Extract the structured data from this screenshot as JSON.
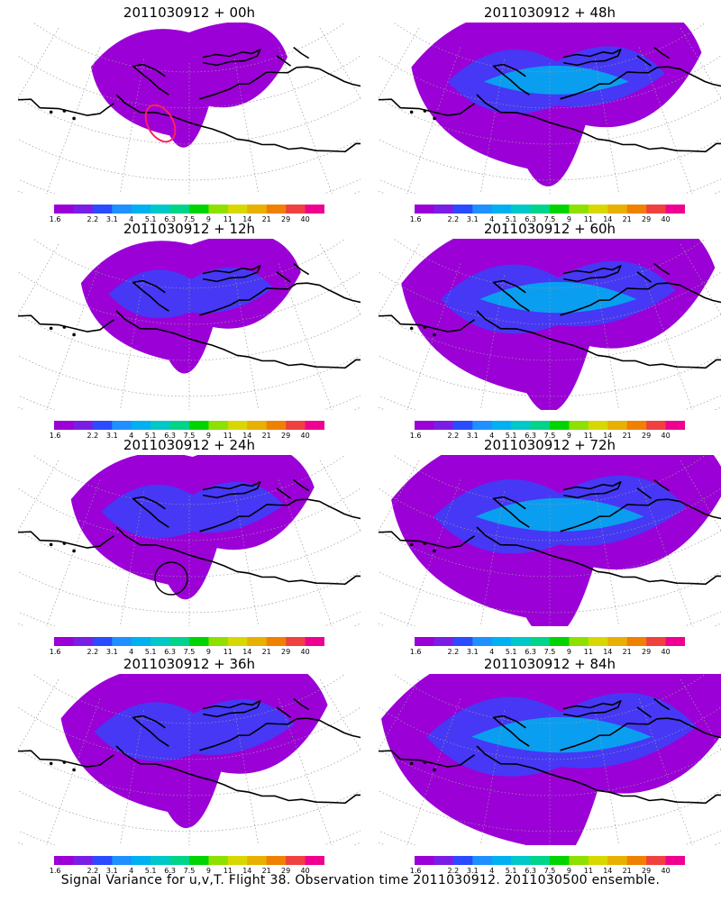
{
  "panels": [
    {
      "title": "2011030912 + 00h",
      "lead_hours": 0,
      "marker": "red-oval"
    },
    {
      "title": "2011030912 + 48h",
      "lead_hours": 48,
      "marker": ""
    },
    {
      "title": "2011030912 + 12h",
      "lead_hours": 12,
      "marker": ""
    },
    {
      "title": "2011030912 + 60h",
      "lead_hours": 60,
      "marker": ""
    },
    {
      "title": "2011030912 + 24h",
      "lead_hours": 24,
      "marker": "black-circle"
    },
    {
      "title": "2011030912 + 72h",
      "lead_hours": 72,
      "marker": ""
    },
    {
      "title": "2011030912 + 36h",
      "lead_hours": 36,
      "marker": ""
    },
    {
      "title": "2011030912 + 84h",
      "lead_hours": 84,
      "marker": ""
    }
  ],
  "colorbar": {
    "labels": [
      "1.6",
      "2.2",
      "3.1",
      "4",
      "5.1",
      "6.3",
      "7.5",
      "9",
      "11",
      "14",
      "21",
      "29",
      "40"
    ],
    "colors": [
      "#9b00d6",
      "#7a1ee6",
      "#2a4bff",
      "#1e90ff",
      "#00b0f0",
      "#00c8c8",
      "#00d48a",
      "#00d400",
      "#8ee000",
      "#d8d800",
      "#e8b000",
      "#f08000",
      "#f04040",
      "#f00090"
    ]
  },
  "caption": "Signal Variance for u,v,T. Flight 38. Observation time 2011030912. 2011030500 ensemble."
}
